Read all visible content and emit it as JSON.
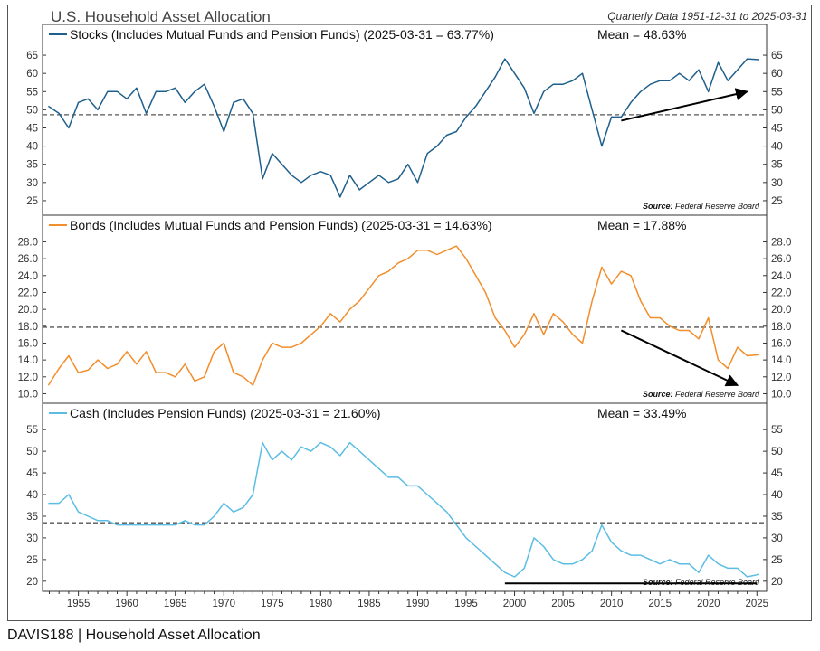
{
  "title": "U.S. Household Asset Allocation",
  "date_range": "Quarterly Data 1951-12-31 to 2025-03-31",
  "footer": "DAVIS188 | Household Asset Allocation",
  "source_label": "Source:",
  "source_name": "Federal Reserve Board",
  "colors": {
    "stocks": "#1f5f8b",
    "bonds": "#f28e2b",
    "cash": "#5bbde4",
    "mean": "#555555",
    "arrow": "#000000"
  },
  "chart_data": [
    {
      "type": "line",
      "name": "stocks",
      "title": "Stocks (Includes Mutual Funds and Pension Funds) (2025-03-31 = 63.77%)",
      "mean_label": "Mean = 48.63%",
      "mean": 48.63,
      "ylim": [
        22,
        68
      ],
      "yticks": [
        25,
        30,
        35,
        40,
        45,
        50,
        55,
        60,
        65
      ],
      "ytick_labels": [
        "25",
        "30",
        "35",
        "40",
        "45",
        "50",
        "55",
        "60",
        "65"
      ],
      "annotation": "upward trend arrow",
      "arrow": [
        [
          2011,
          47
        ],
        [
          2024,
          55
        ]
      ],
      "x": [
        1951.9,
        1953,
        1954,
        1955,
        1956,
        1957,
        1958,
        1959,
        1960,
        1961,
        1962,
        1963,
        1964,
        1965,
        1966,
        1967,
        1968,
        1969,
        1970,
        1971,
        1972,
        1973,
        1974,
        1975,
        1976,
        1977,
        1978,
        1979,
        1980,
        1981,
        1982,
        1983,
        1984,
        1985,
        1986,
        1987,
        1988,
        1989,
        1990,
        1991,
        1992,
        1993,
        1994,
        1995,
        1996,
        1997,
        1998,
        1999,
        2000,
        2001,
        2002,
        2003,
        2004,
        2005,
        2006,
        2007,
        2008,
        2009,
        2010,
        2011,
        2012,
        2013,
        2014,
        2015,
        2016,
        2017,
        2018,
        2019,
        2020,
        2021,
        2022,
        2023,
        2024,
        2025.25
      ],
      "values": [
        51,
        49,
        45,
        52,
        53,
        50,
        55,
        55,
        53,
        56,
        49,
        55,
        55,
        56,
        52,
        55,
        57,
        51,
        44,
        52,
        53,
        49,
        31,
        38,
        35,
        32,
        30,
        32,
        33,
        32,
        26,
        32,
        28,
        30,
        32,
        30,
        31,
        35,
        30,
        38,
        40,
        43,
        44,
        48,
        51,
        55,
        59,
        64,
        60,
        56,
        49,
        55,
        57,
        57,
        58,
        60,
        50,
        40,
        48,
        48,
        52,
        55,
        57,
        58,
        58,
        60,
        58,
        61,
        55,
        63,
        58,
        61,
        64,
        63.77
      ]
    },
    {
      "type": "line",
      "name": "bonds",
      "title": "Bonds (Includes Mutual Funds and Pension Funds) (2025-03-31 = 14.63%)",
      "mean_label": "Mean = 17.88%",
      "mean": 17.88,
      "ylim": [
        9.3,
        28.8
      ],
      "yticks": [
        10,
        12,
        14,
        16,
        18,
        20,
        22,
        24,
        26,
        28
      ],
      "ytick_labels": [
        "10.0",
        "12.0",
        "14.0",
        "16.0",
        "18.0",
        "20.0",
        "22.0",
        "24.0",
        "26.0",
        "28.0"
      ],
      "annotation": "downward trend arrow",
      "arrow": [
        [
          2011,
          17.5
        ],
        [
          2023,
          11
        ]
      ],
      "x": [
        1951.9,
        1953,
        1954,
        1955,
        1956,
        1957,
        1958,
        1959,
        1960,
        1961,
        1962,
        1963,
        1964,
        1965,
        1966,
        1967,
        1968,
        1969,
        1970,
        1971,
        1972,
        1973,
        1974,
        1975,
        1976,
        1977,
        1978,
        1979,
        1980,
        1981,
        1982,
        1983,
        1984,
        1985,
        1986,
        1987,
        1988,
        1989,
        1990,
        1991,
        1992,
        1993,
        1994,
        1995,
        1996,
        1997,
        1998,
        1999,
        2000,
        2001,
        2002,
        2003,
        2004,
        2005,
        2006,
        2007,
        2008,
        2009,
        2010,
        2011,
        2012,
        2013,
        2014,
        2015,
        2016,
        2017,
        2018,
        2019,
        2020,
        2021,
        2022,
        2023,
        2024,
        2025.25
      ],
      "values": [
        11.0,
        13.0,
        14.5,
        12.5,
        12.8,
        14.0,
        13.0,
        13.5,
        15.0,
        13.5,
        15.0,
        12.5,
        12.5,
        12.0,
        13.5,
        11.5,
        12.0,
        15.0,
        16.0,
        12.5,
        12.0,
        11.0,
        14.0,
        16.0,
        15.5,
        15.5,
        16.0,
        17.0,
        18.0,
        19.5,
        18.5,
        20.0,
        21.0,
        22.5,
        24.0,
        24.5,
        25.5,
        26.0,
        27.0,
        27.0,
        26.5,
        27.0,
        27.5,
        26.0,
        24.0,
        22.0,
        19.0,
        17.5,
        15.5,
        17.0,
        19.5,
        17.0,
        19.5,
        18.5,
        17.0,
        16.0,
        21.0,
        25.0,
        23.0,
        24.5,
        24.0,
        21.0,
        19.0,
        19.0,
        18.0,
        17.5,
        17.5,
        16.5,
        19.0,
        14.0,
        13.0,
        15.5,
        14.5,
        14.63
      ]
    },
    {
      "type": "line",
      "name": "cash",
      "title": "Cash (Includes Pension Funds) (2025-03-31 = 21.60%)",
      "mean_label": "Mean = 33.49%",
      "mean": 33.49,
      "ylim": [
        18.5,
        56.5
      ],
      "yticks": [
        20,
        25,
        30,
        35,
        40,
        45,
        50,
        55
      ],
      "ytick_labels": [
        "20",
        "25",
        "30",
        "35",
        "40",
        "45",
        "50",
        "55"
      ],
      "annotation": "flat support line",
      "arrow": [
        [
          1999,
          19.5
        ],
        [
          2025,
          19.5
        ]
      ],
      "x": [
        1951.9,
        1953,
        1954,
        1955,
        1956,
        1957,
        1958,
        1959,
        1960,
        1961,
        1962,
        1963,
        1964,
        1965,
        1966,
        1967,
        1968,
        1969,
        1970,
        1971,
        1972,
        1973,
        1974,
        1975,
        1976,
        1977,
        1978,
        1979,
        1980,
        1981,
        1982,
        1983,
        1984,
        1985,
        1986,
        1987,
        1988,
        1989,
        1990,
        1991,
        1992,
        1993,
        1994,
        1995,
        1996,
        1997,
        1998,
        1999,
        2000,
        2001,
        2002,
        2003,
        2004,
        2005,
        2006,
        2007,
        2008,
        2009,
        2010,
        2011,
        2012,
        2013,
        2014,
        2015,
        2016,
        2017,
        2018,
        2019,
        2020,
        2021,
        2022,
        2023,
        2024,
        2025.25
      ],
      "values": [
        38,
        38,
        40,
        36,
        35,
        34,
        34,
        33,
        33,
        33,
        33,
        33,
        33,
        33,
        34,
        33,
        33,
        35,
        38,
        36,
        37,
        40,
        52,
        48,
        50,
        48,
        51,
        50,
        52,
        51,
        49,
        52,
        50,
        48,
        46,
        44,
        44,
        42,
        42,
        40,
        38,
        36,
        33,
        30,
        28,
        26,
        24,
        22,
        21,
        23,
        30,
        28,
        25,
        24,
        24,
        25,
        27,
        33,
        29,
        27,
        26,
        26,
        25,
        24,
        25,
        24,
        24,
        22,
        26,
        24,
        23,
        23,
        21,
        21.6
      ]
    }
  ],
  "x_axis": {
    "ticks": [
      1955,
      1960,
      1965,
      1970,
      1975,
      1980,
      1985,
      1990,
      1995,
      2000,
      2005,
      2010,
      2015,
      2020,
      2025
    ],
    "tick_labels": [
      "1955",
      "1960",
      "1965",
      "1970",
      "1975",
      "1980",
      "1985",
      "1990",
      "1995",
      "2000",
      "2005",
      "2010",
      "2015",
      "2020",
      "2025"
    ],
    "xlim": [
      1951.3,
      2026.0
    ]
  }
}
